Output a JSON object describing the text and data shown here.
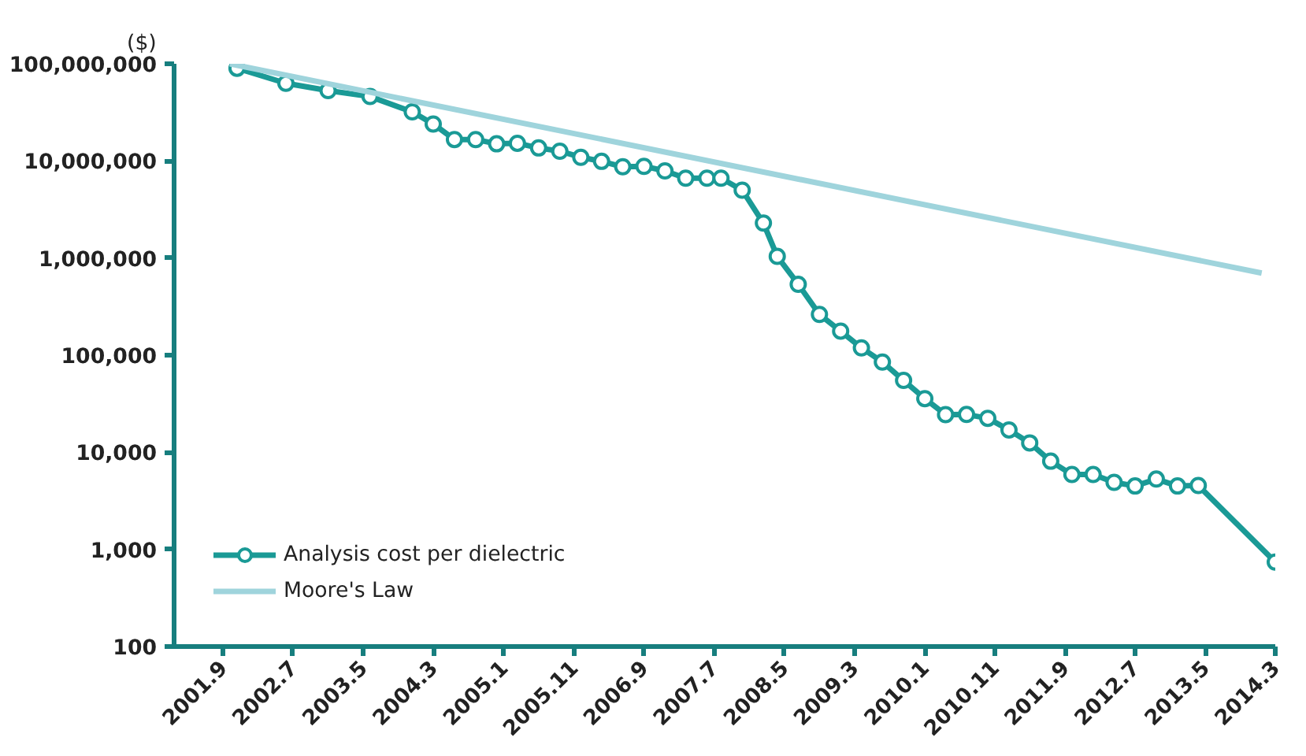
{
  "chart_data": {
    "type": "line",
    "ylabel": "($)",
    "log": true,
    "grid": false,
    "legend": "bottom left",
    "line_style": "solid",
    "xlim": [
      "2001-02",
      "2014-03"
    ],
    "ylim": [
      100,
      100000000
    ],
    "xticks": [
      {
        "value": "2001-09",
        "label": "2001.9"
      },
      {
        "value": "2002-07",
        "label": "2002.7"
      },
      {
        "value": "2003-05",
        "label": "2003.5"
      },
      {
        "value": "2004-03",
        "label": "2004.3"
      },
      {
        "value": "2005-01",
        "label": "2005.1"
      },
      {
        "value": "2005-11",
        "label": "2005.11"
      },
      {
        "value": "2006-09",
        "label": "2006.9"
      },
      {
        "value": "2007-07",
        "label": "2007.7"
      },
      {
        "value": "2008-05",
        "label": "2008.5"
      },
      {
        "value": "2009-03",
        "label": "2009.3"
      },
      {
        "value": "2010-01",
        "label": "2010.1"
      },
      {
        "value": "2010-11",
        "label": "2010.11"
      },
      {
        "value": "2011-09",
        "label": "2011.9"
      },
      {
        "value": "2012-07",
        "label": "2012.7"
      },
      {
        "value": "2013-05",
        "label": "2013.5"
      },
      {
        "value": "2014-03",
        "label": "2014.3"
      }
    ],
    "yticks": [
      {
        "value": 100,
        "label": "100"
      },
      {
        "value": 1000,
        "label": "1,000"
      },
      {
        "value": 10000,
        "label": "10,000"
      },
      {
        "value": 100000,
        "label": "100,000"
      },
      {
        "value": 1000000,
        "label": "1,000,000"
      },
      {
        "value": 10000000,
        "label": "10,000,000"
      },
      {
        "value": 100000000,
        "label": "100,000,000"
      }
    ],
    "series": [
      {
        "name": "Analysis cost per dielectric",
        "color": "#1a9a96",
        "marker": "circle",
        "x": [
          "2001-11",
          "2002-06",
          "2002-12",
          "2003-06",
          "2003-12",
          "2004-03",
          "2004-06",
          "2004-09",
          "2004-12",
          "2005-03",
          "2005-06",
          "2005-09",
          "2005-12",
          "2006-03",
          "2006-06",
          "2006-09",
          "2006-12",
          "2007-03",
          "2007-06",
          "2007-08",
          "2007-11",
          "2008-02",
          "2008-04",
          "2008-07",
          "2008-10",
          "2009-01",
          "2009-04",
          "2009-07",
          "2009-10",
          "2010-01",
          "2010-04",
          "2010-07",
          "2010-10",
          "2011-01",
          "2011-04",
          "2011-07",
          "2011-10",
          "2012-01",
          "2012-04",
          "2012-07",
          "2012-10",
          "2013-01",
          "2013-04",
          "2014-03"
        ],
        "values": [
          90000000,
          63000000,
          53000000,
          46000000,
          32000000,
          24000000,
          16600000,
          16600000,
          15000000,
          15200000,
          13600000,
          12600000,
          10900000,
          9900000,
          8700000,
          8800000,
          7900000,
          6650000,
          6650000,
          6650000,
          5000000,
          2290000,
          1040000,
          537000,
          263000,
          177000,
          119000,
          85000,
          55000,
          35700,
          24400,
          24500,
          22400,
          17000,
          12500,
          8100,
          5900,
          5900,
          4900,
          4500,
          5300,
          4500,
          4550,
          740
        ]
      },
      {
        "name": "Moore's Law",
        "color": "#9fd4dc",
        "marker": "none",
        "x": [
          "2001-10",
          "2014-01"
        ],
        "values": [
          100000000,
          700000
        ]
      }
    ]
  }
}
